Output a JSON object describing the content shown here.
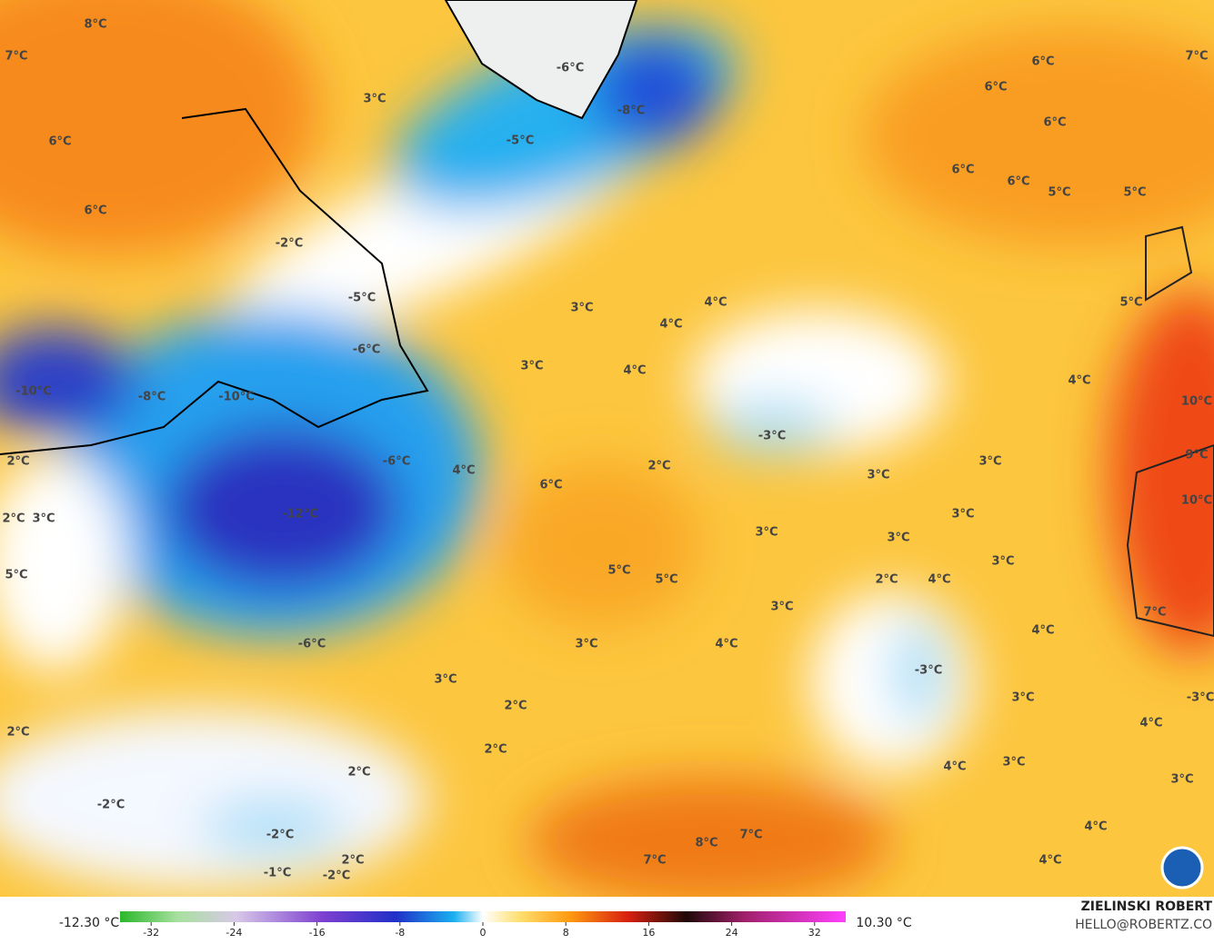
{
  "map": {
    "labels": [
      "8°C",
      "7°C",
      "3°C",
      "6°C",
      "6°C",
      "-2°C",
      "-5°C",
      "-6°C",
      "-10°C",
      "-8°C",
      "-10°C",
      "2°C",
      "2°C",
      "3°C",
      "5°C",
      "-6°C",
      "-12°C",
      "4°C",
      "-6°C",
      "3°C",
      "2°C",
      "2°C",
      "2°C",
      "2°C",
      "-2°C",
      "-2°C",
      "-1°C",
      "2°C",
      "-2°C",
      "-6°C",
      "-5°C",
      "-8°C",
      "6°C",
      "7°C",
      "6°C",
      "6°C",
      "6°C",
      "6°C",
      "5°C",
      "5°C",
      "3°C",
      "4°C",
      "4°C",
      "3°C",
      "4°C",
      "5°C",
      "4°C",
      "10°C",
      "-3°C",
      "2°C",
      "3°C",
      "3°C",
      "9°C",
      "6°C",
      "10°C",
      "3°C",
      "3°C",
      "3°C",
      "3°C",
      "5°C",
      "5°C",
      "2°C",
      "4°C",
      "3°C",
      "7°C",
      "3°C",
      "4°C",
      "4°C",
      "-3°C",
      "3°C",
      "-3°C",
      "4°C",
      "4°C",
      "3°C",
      "3°C",
      "4°C",
      "8°C",
      "7°C",
      "7°C",
      "4°C"
    ]
  },
  "colorbar": {
    "min_label": "-12.30 °C",
    "max_label": "10.30 °C",
    "lim": [
      -35,
      35
    ],
    "ticks": [
      -32,
      -24,
      -16,
      -8,
      0,
      8,
      16,
      24,
      32
    ]
  },
  "credit": {
    "name": "ZIELINSKI ROBERT",
    "email": "HELLO@ROBERTZ.CO"
  }
}
